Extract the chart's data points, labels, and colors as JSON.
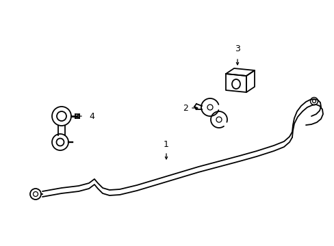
{
  "background_color": "#ffffff",
  "line_color": "#000000",
  "line_width": 1.3,
  "figsize": [
    4.89,
    3.6
  ],
  "dpi": 100,
  "label_fontsize": 9
}
